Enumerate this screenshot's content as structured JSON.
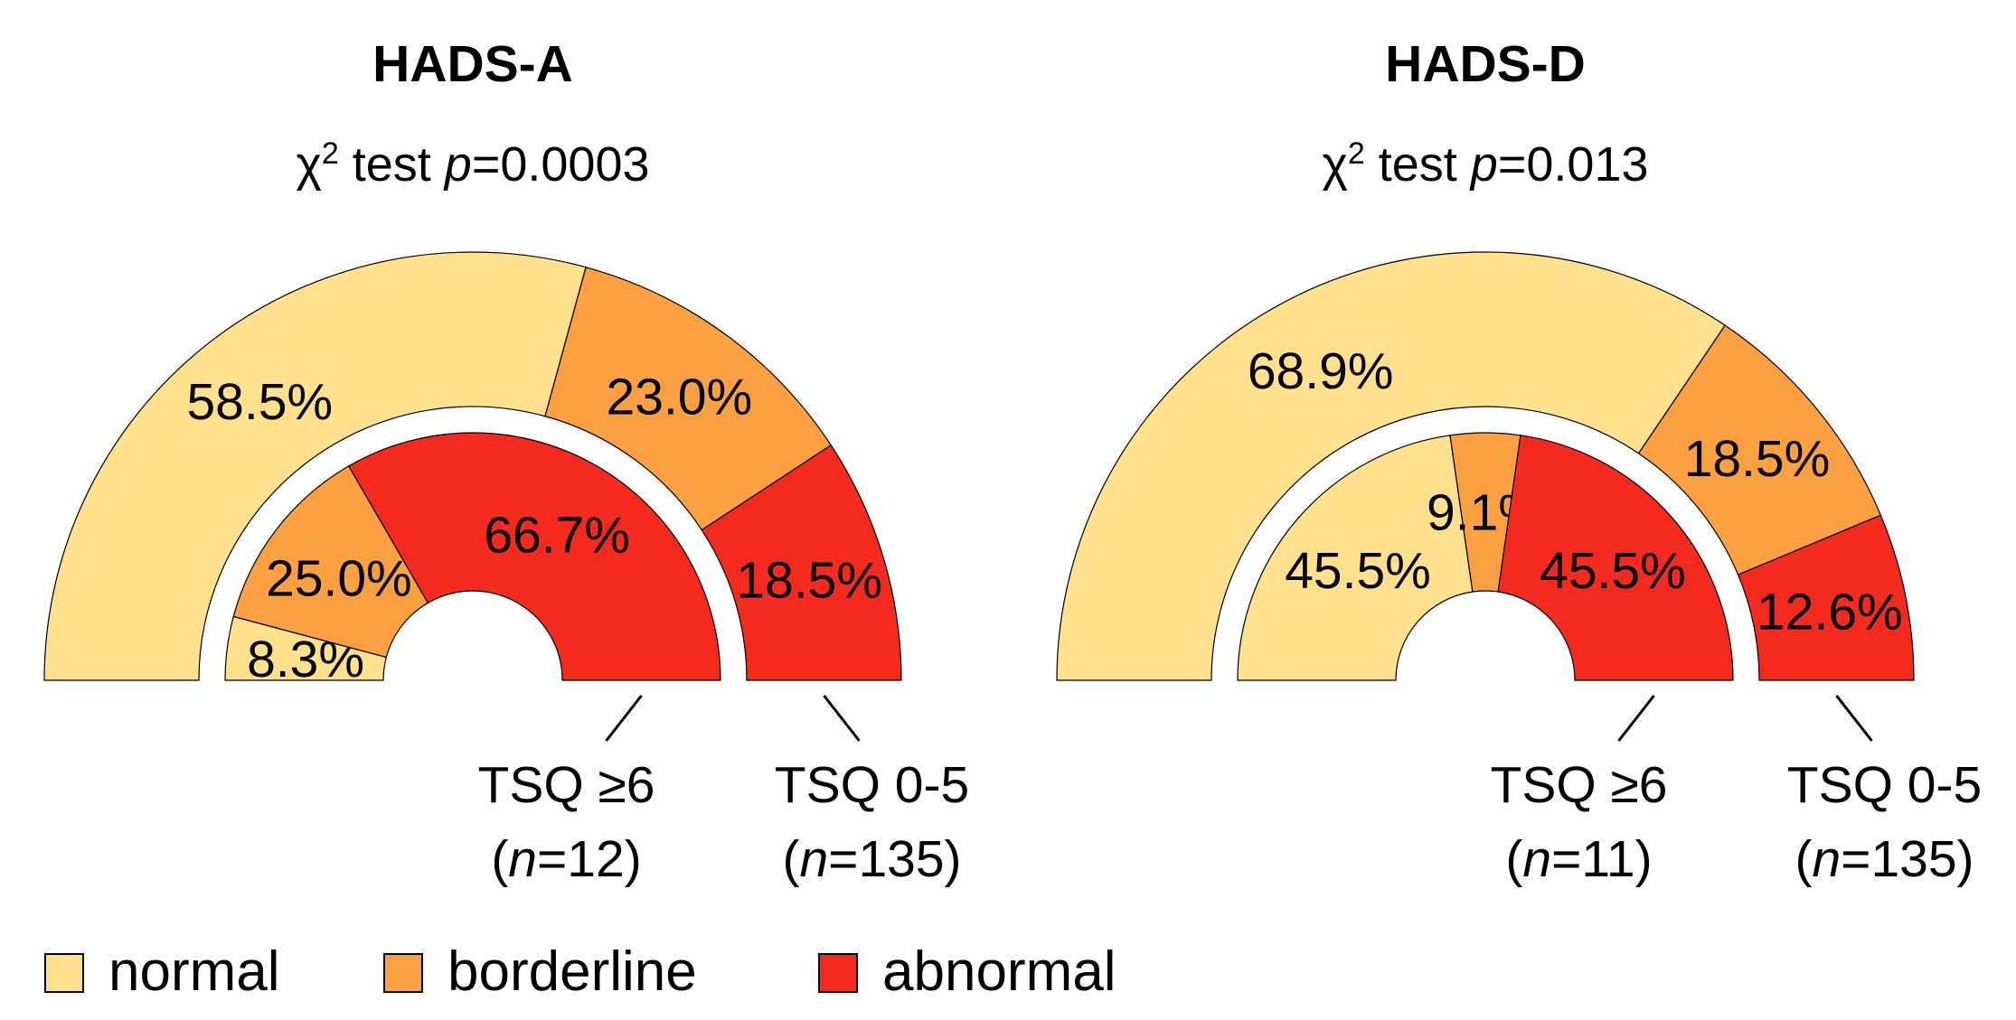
{
  "chart_data": [
    {
      "type": "half-donut",
      "title": "HADS-A",
      "subtitle": [
        "χ",
        "2",
        " test ",
        "p",
        "=0.0003"
      ],
      "series": [
        {
          "name": "TSQ 0-5",
          "n_label": [
            "(",
            "n",
            "=135)"
          ],
          "values": [
            58.5,
            23.0,
            18.5
          ],
          "value_labels": [
            "58.5%",
            "23.0%",
            "18.5%"
          ]
        },
        {
          "name": "TSQ ≥6",
          "n_label": [
            "(",
            "n",
            "=12)"
          ],
          "values": [
            8.3,
            25.0,
            66.7
          ],
          "value_labels": [
            "8.3%",
            "25.0%",
            "66.7%"
          ]
        }
      ]
    },
    {
      "type": "half-donut",
      "title": "HADS-D",
      "subtitle": [
        "χ",
        "2",
        " test ",
        "p",
        "=0.013"
      ],
      "series": [
        {
          "name": "TSQ 0-5",
          "n_label": [
            "(",
            "n",
            "=135)"
          ],
          "values": [
            68.9,
            18.5,
            12.6
          ],
          "value_labels": [
            "68.9%",
            "18.5%",
            "12.6%"
          ]
        },
        {
          "name": "TSQ ≥6",
          "n_label": [
            "(",
            "n",
            "=11)"
          ],
          "values": [
            45.5,
            9.1,
            45.5
          ],
          "value_labels": [
            "45.5%",
            "9.1%",
            "45.5%"
          ]
        }
      ]
    }
  ],
  "legend": {
    "categories": [
      "normal",
      "borderline",
      "abnormal"
    ],
    "colors": [
      "#FFE08C",
      "#FBA040",
      "#F52A1F"
    ]
  }
}
